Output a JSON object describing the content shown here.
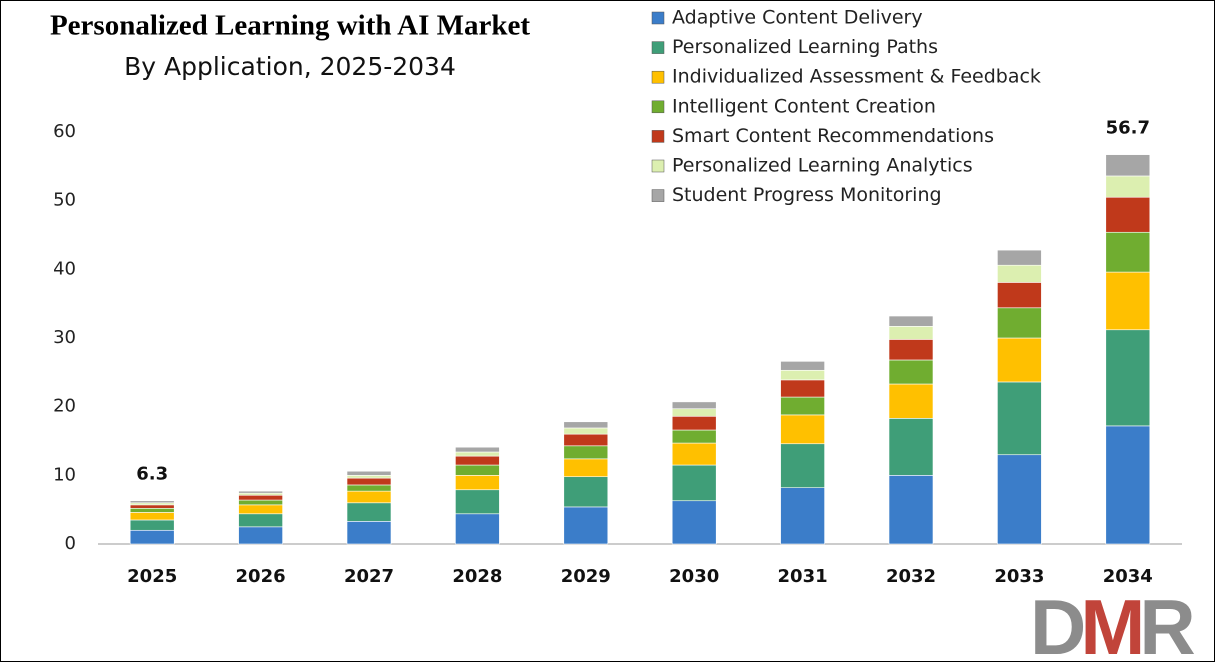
{
  "chart_data": {
    "type": "stacked-bar",
    "title": "Personalized Learning with AI Market",
    "subtitle": "By Application, 2025-2034",
    "categories": [
      "2025",
      "2026",
      "2027",
      "2028",
      "2029",
      "2030",
      "2031",
      "2032",
      "2033",
      "2034"
    ],
    "series": [
      {
        "name": "Adaptive Content Delivery",
        "color": "#3b7dc9",
        "values": [
          2.0,
          2.5,
          3.3,
          4.4,
          5.4,
          6.3,
          8.2,
          10.0,
          13.0,
          17.2
        ]
      },
      {
        "name": "Personalized Learning Paths",
        "color": "#3f9e78",
        "values": [
          1.5,
          1.9,
          2.7,
          3.5,
          4.4,
          5.2,
          6.4,
          8.3,
          10.6,
          14.0
        ]
      },
      {
        "name": "Individualized Assessment & Feedback",
        "color": "#ffc000",
        "values": [
          1.1,
          1.3,
          1.7,
          2.1,
          2.6,
          3.2,
          4.2,
          5.0,
          6.4,
          8.4
        ]
      },
      {
        "name": "Intelligent Content Creation",
        "color": "#70ad30",
        "values": [
          0.6,
          0.7,
          0.9,
          1.5,
          1.9,
          1.9,
          2.6,
          3.5,
          4.4,
          5.8
        ]
      },
      {
        "name": "Smart Content Recommendations",
        "color": "#c0391b",
        "values": [
          0.5,
          0.7,
          1.0,
          1.3,
          1.7,
          2.0,
          2.5,
          3.0,
          3.7,
          5.1
        ]
      },
      {
        "name": "Personalized Learning Analytics",
        "color": "#dcefb0",
        "values": [
          0.3,
          0.3,
          0.4,
          0.6,
          0.9,
          1.1,
          1.4,
          1.9,
          2.5,
          3.1
        ]
      },
      {
        "name": "Student Progress Monitoring",
        "color": "#a6a6a6",
        "values": [
          0.3,
          0.3,
          0.6,
          0.7,
          0.9,
          1.0,
          1.3,
          1.5,
          2.2,
          3.1
        ]
      }
    ],
    "total_labels": [
      6.3,
      null,
      null,
      null,
      null,
      null,
      null,
      null,
      null,
      56.7
    ],
    "ylim": [
      0,
      60
    ],
    "yticks": [
      0,
      10,
      20,
      30,
      40,
      50,
      60
    ],
    "grid": false,
    "legend": "top-right",
    "logo": [
      "D",
      "M",
      "R"
    ]
  }
}
